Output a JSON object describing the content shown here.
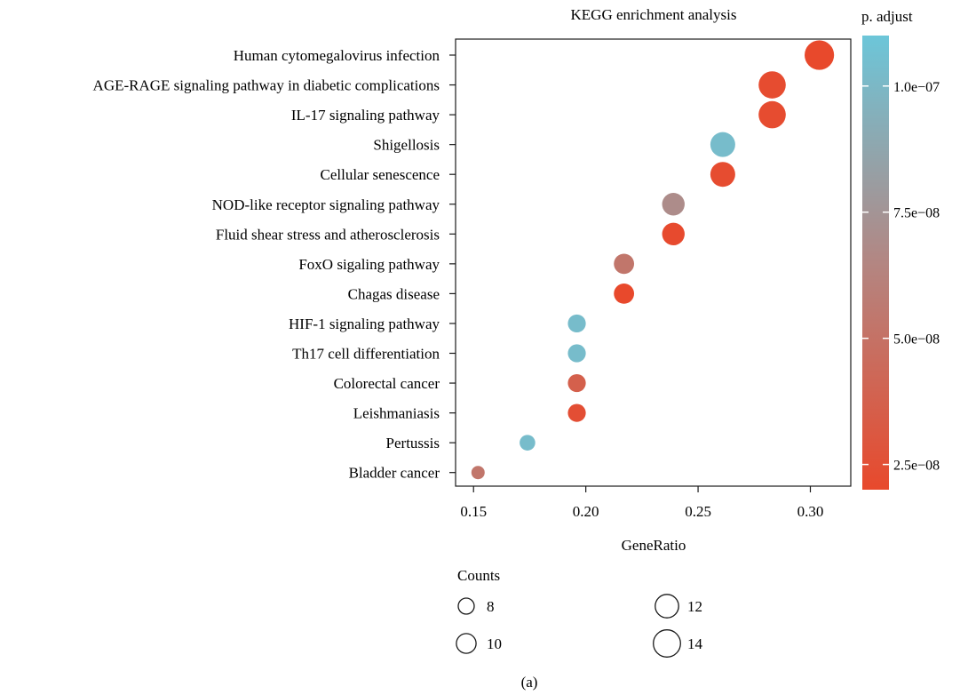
{
  "figure_label": "(a)",
  "chart_data": {
    "type": "scatter",
    "title": "KEGG enrichment analysis",
    "xlabel": "GeneRatio",
    "ylabel": "",
    "xlim": [
      0.142,
      0.318
    ],
    "xticks": [
      0.15,
      0.2,
      0.25,
      0.3
    ],
    "xtick_labels": [
      "0.15",
      "0.20",
      "0.25",
      "0.30"
    ],
    "grid": false,
    "categories": [
      "Human cytomegalovirus infection",
      "AGE-RAGE signaling pathway in diabetic complications",
      "IL-17 signaling pathway",
      "Shigellosis",
      "Cellular senescence",
      "NOD-like receptor signaling pathway",
      "Fluid shear stress and atherosclerosis",
      "FoxO sigaling pathway",
      "Chagas disease",
      "HIF-1 signaling pathway",
      "Th17 cell differentiation",
      "Colorectal cancer",
      "Leishmaniasis",
      "Pertussis",
      "Bladder cancer"
    ],
    "gene_ratio": [
      0.304,
      0.283,
      0.283,
      0.261,
      0.261,
      0.239,
      0.239,
      0.217,
      0.217,
      0.196,
      0.196,
      0.196,
      0.196,
      0.174,
      0.152
    ],
    "counts": [
      14,
      13,
      13,
      12,
      12,
      11,
      11,
      10,
      10,
      9,
      9,
      9,
      9,
      8,
      7
    ],
    "p_adjust": [
      2e-08,
      2.2e-08,
      2.2e-08,
      1.03e-07,
      2.2e-08,
      6.9e-08,
      2.1e-08,
      5.3e-08,
      2e-08,
      1.03e-07,
      1.03e-07,
      3.7e-08,
      2.4e-08,
      1.03e-07,
      5.3e-08
    ],
    "color_legend": {
      "title": "p. adjust",
      "range": [
        2e-08,
        1.1e-07
      ],
      "ticks": [
        1e-07,
        7.5e-08,
        5e-08,
        2.5e-08
      ],
      "tick_labels": [
        "1.0e−07",
        "7.5e−08",
        "5.0e−08",
        "2.5e−08"
      ],
      "low_color": "#e8492c",
      "high_color": "#6cc6d9"
    },
    "size_legend": {
      "title": "Counts",
      "values": [
        8,
        10,
        12,
        14
      ],
      "labels": [
        "8",
        "10",
        "12",
        "14"
      ]
    }
  }
}
